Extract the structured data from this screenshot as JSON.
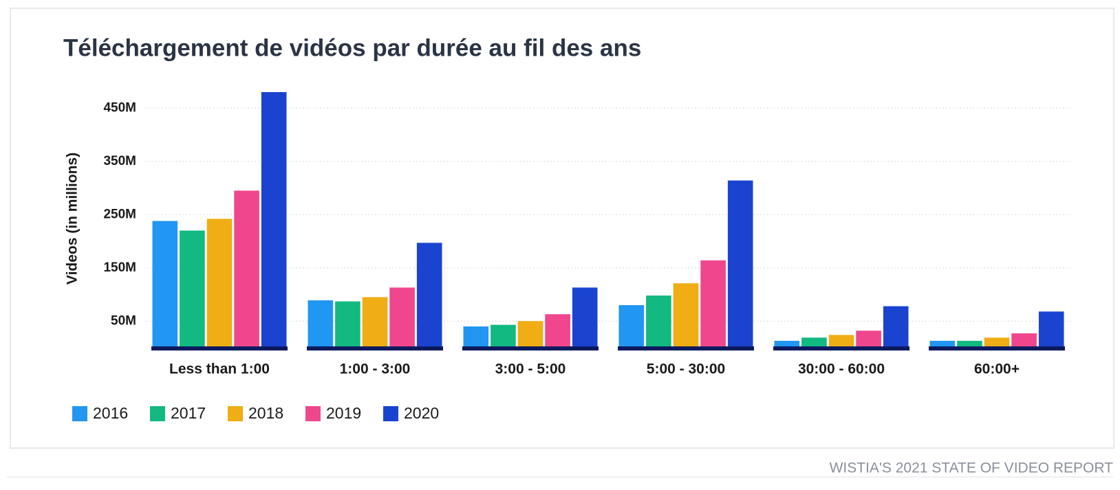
{
  "chart_data": {
    "type": "bar",
    "title": "Téléchargement de vidéos par durée au fil des ans",
    "y_label": "Videos (in millions)",
    "source": "WISTIA'S 2021 STATE OF VIDEO REPORT",
    "categories": [
      "Less than 1:00",
      "1:00 - 3:00",
      "3:00 - 5:00",
      "5:00 - 30:00",
      "30:00 - 60:00",
      "60:00+"
    ],
    "series": [
      {
        "name": "2016",
        "color": "#2196f3",
        "values": [
          238,
          89,
          40,
          80,
          13,
          13
        ]
      },
      {
        "name": "2017",
        "color": "#12b981",
        "values": [
          220,
          87,
          43,
          98,
          19,
          13
        ]
      },
      {
        "name": "2018",
        "color": "#f0ad14",
        "values": [
          242,
          95,
          50,
          121,
          24,
          19
        ]
      },
      {
        "name": "2019",
        "color": "#f0468e",
        "values": [
          295,
          113,
          63,
          164,
          32,
          27
        ]
      },
      {
        "name": "2020",
        "color": "#1a44d0",
        "values": [
          480,
          197,
          113,
          314,
          78,
          68
        ]
      }
    ],
    "ylim": [
      0,
      480
    ],
    "yticks": [
      {
        "value": 50,
        "label": "50M"
      },
      {
        "value": 150,
        "label": "150M"
      },
      {
        "value": 250,
        "label": "250M"
      },
      {
        "value": 350,
        "label": "350M"
      },
      {
        "value": 450,
        "label": "450M"
      }
    ],
    "grid": true,
    "legend": "bottom-left"
  }
}
